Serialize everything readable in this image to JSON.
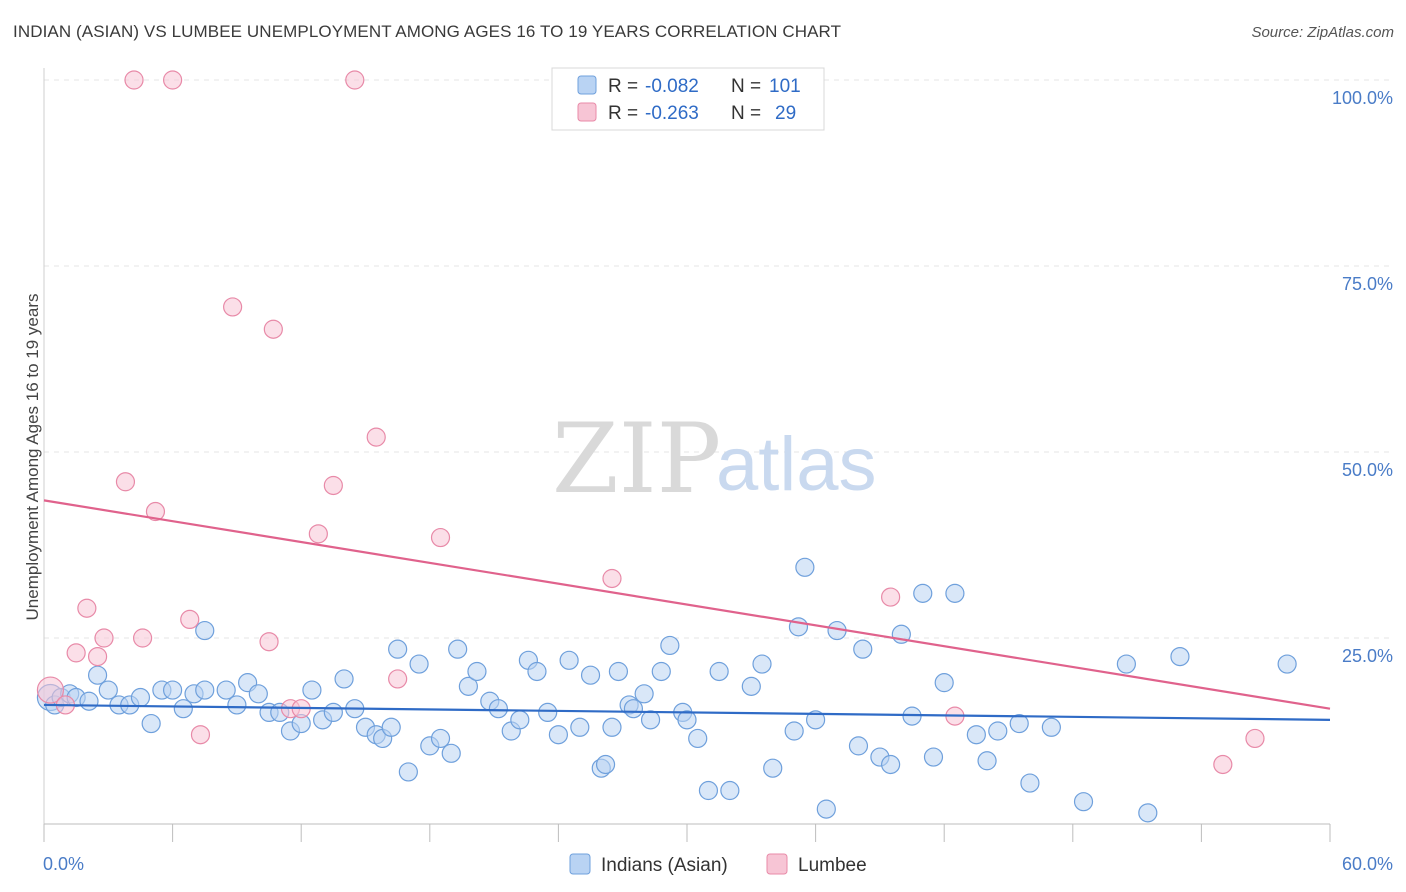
{
  "header": {
    "title": "INDIAN (ASIAN) VS LUMBEE UNEMPLOYMENT AMONG AGES 16 TO 19 YEARS CORRELATION CHART",
    "source": "Source: ZipAtlas.com"
  },
  "watermark": {
    "zip": "ZIP",
    "atlas": "atlas"
  },
  "colors": {
    "blue_fill": "#b9d3f3",
    "blue_stroke": "#6fa0dc",
    "blue_line": "#2f6bc6",
    "pink_fill": "#f7c5d5",
    "pink_stroke": "#e88aa8",
    "pink_line": "#e0628c",
    "tick_text": "#4a7cc7",
    "grid": "#e4e4e4"
  },
  "legend": {
    "rows": [
      {
        "r_label": "R = ",
        "r_value": "-0.082",
        "n_label": "N = ",
        "n_value": "101"
      },
      {
        "r_label": "R = ",
        "r_value": "-0.263",
        "n_label": "N = ",
        "n_value": "29"
      }
    ]
  },
  "chart_data": {
    "type": "scatter",
    "title": "INDIAN (ASIAN) VS LUMBEE UNEMPLOYMENT AMONG AGES 16 TO 19 YEARS CORRELATION CHART",
    "xlabel": "",
    "ylabel": "Unemployment Among Ages 16 to 19 years",
    "xlim": [
      0,
      60
    ],
    "ylim": [
      0,
      100
    ],
    "x_tick_labels": [
      "0.0%",
      "60.0%"
    ],
    "y_ticks": [
      25,
      50,
      75,
      100
    ],
    "y_tick_labels": [
      "25.0%",
      "50.0%",
      "75.0%",
      "100.0%"
    ],
    "grid": true,
    "legend_position": "top-center",
    "series": [
      {
        "name": "Indians (Asian)",
        "r": -0.082,
        "n": 101,
        "trend": {
          "x": [
            0,
            60
          ],
          "y": [
            16.0,
            14.0
          ]
        },
        "points": [
          [
            0.3,
            17
          ],
          [
            0.5,
            16
          ],
          [
            0.8,
            17
          ],
          [
            1.2,
            17.5
          ],
          [
            1.5,
            17
          ],
          [
            2.1,
            16.5
          ],
          [
            2.5,
            20
          ],
          [
            3.0,
            18
          ],
          [
            3.5,
            16
          ],
          [
            4.0,
            16
          ],
          [
            4.5,
            17
          ],
          [
            5.0,
            13.5
          ],
          [
            5.5,
            18
          ],
          [
            6.0,
            18
          ],
          [
            6.5,
            15.5
          ],
          [
            7.0,
            17.5
          ],
          [
            7.5,
            18
          ],
          [
            7.5,
            26
          ],
          [
            8.5,
            18
          ],
          [
            9.0,
            16
          ],
          [
            9.5,
            19
          ],
          [
            10.0,
            17.5
          ],
          [
            10.5,
            15
          ],
          [
            11.0,
            15
          ],
          [
            11.5,
            12.5
          ],
          [
            12.0,
            13.5
          ],
          [
            12.5,
            18
          ],
          [
            13.0,
            14
          ],
          [
            13.5,
            15
          ],
          [
            14.0,
            19.5
          ],
          [
            14.5,
            15.5
          ],
          [
            15.0,
            13
          ],
          [
            15.5,
            12
          ],
          [
            15.8,
            11.5
          ],
          [
            16.2,
            13
          ],
          [
            16.5,
            23.5
          ],
          [
            17.0,
            7
          ],
          [
            17.5,
            21.5
          ],
          [
            18.0,
            10.5
          ],
          [
            18.5,
            11.5
          ],
          [
            19.0,
            9.5
          ],
          [
            19.3,
            23.5
          ],
          [
            19.8,
            18.5
          ],
          [
            20.2,
            20.5
          ],
          [
            20.8,
            16.5
          ],
          [
            21.2,
            15.5
          ],
          [
            21.8,
            12.5
          ],
          [
            22.2,
            14
          ],
          [
            22.6,
            22
          ],
          [
            23.0,
            20.5
          ],
          [
            23.5,
            15
          ],
          [
            24.0,
            12
          ],
          [
            24.5,
            22
          ],
          [
            25.0,
            13
          ],
          [
            25.5,
            20
          ],
          [
            26.0,
            7.5
          ],
          [
            26.2,
            8
          ],
          [
            26.5,
            13
          ],
          [
            26.8,
            20.5
          ],
          [
            27.3,
            16
          ],
          [
            27.5,
            15.5
          ],
          [
            28.0,
            17.5
          ],
          [
            28.3,
            14
          ],
          [
            28.8,
            20.5
          ],
          [
            29.2,
            24
          ],
          [
            29.8,
            15
          ],
          [
            30.0,
            14
          ],
          [
            30.5,
            11.5
          ],
          [
            31.0,
            4.5
          ],
          [
            31.5,
            20.5
          ],
          [
            32.0,
            4.5
          ],
          [
            33.0,
            18.5
          ],
          [
            33.5,
            21.5
          ],
          [
            34.0,
            7.5
          ],
          [
            35.0,
            12.5
          ],
          [
            35.2,
            26.5
          ],
          [
            35.5,
            34.5
          ],
          [
            36.0,
            14
          ],
          [
            36.5,
            2
          ],
          [
            37.0,
            26
          ],
          [
            38.0,
            10.5
          ],
          [
            38.2,
            23.5
          ],
          [
            39.0,
            9
          ],
          [
            39.5,
            8
          ],
          [
            40.0,
            25.5
          ],
          [
            40.5,
            14.5
          ],
          [
            41.0,
            31
          ],
          [
            41.5,
            9
          ],
          [
            42.0,
            19
          ],
          [
            42.5,
            31
          ],
          [
            43.5,
            12
          ],
          [
            44.0,
            8.5
          ],
          [
            44.5,
            12.5
          ],
          [
            45.5,
            13.5
          ],
          [
            46.0,
            5.5
          ],
          [
            47.0,
            13
          ],
          [
            48.5,
            3
          ],
          [
            50.5,
            21.5
          ],
          [
            51.5,
            1.5
          ],
          [
            53.0,
            22.5
          ],
          [
            58.0,
            21.5
          ]
        ]
      },
      {
        "name": "Lumbee",
        "r": -0.263,
        "n": 29,
        "trend": {
          "x": [
            0,
            60
          ],
          "y": [
            43.5,
            15.5
          ]
        },
        "points": [
          [
            0.3,
            18
          ],
          [
            1.0,
            16
          ],
          [
            1.5,
            23
          ],
          [
            2.0,
            29
          ],
          [
            2.5,
            22.5
          ],
          [
            2.8,
            25
          ],
          [
            3.8,
            46
          ],
          [
            4.2,
            100
          ],
          [
            4.6,
            25
          ],
          [
            5.2,
            42
          ],
          [
            6.0,
            100
          ],
          [
            6.8,
            27.5
          ],
          [
            7.3,
            12
          ],
          [
            8.8,
            69.5
          ],
          [
            10.5,
            24.5
          ],
          [
            10.7,
            66.5
          ],
          [
            11.5,
            15.5
          ],
          [
            12.0,
            15.5
          ],
          [
            12.8,
            39
          ],
          [
            13.5,
            45.5
          ],
          [
            14.5,
            100
          ],
          [
            15.5,
            52
          ],
          [
            16.5,
            19.5
          ],
          [
            18.5,
            38.5
          ],
          [
            26.5,
            33
          ],
          [
            39.5,
            30.5
          ],
          [
            42.5,
            14.5
          ],
          [
            55.0,
            8
          ],
          [
            56.5,
            11.5
          ]
        ]
      }
    ]
  }
}
